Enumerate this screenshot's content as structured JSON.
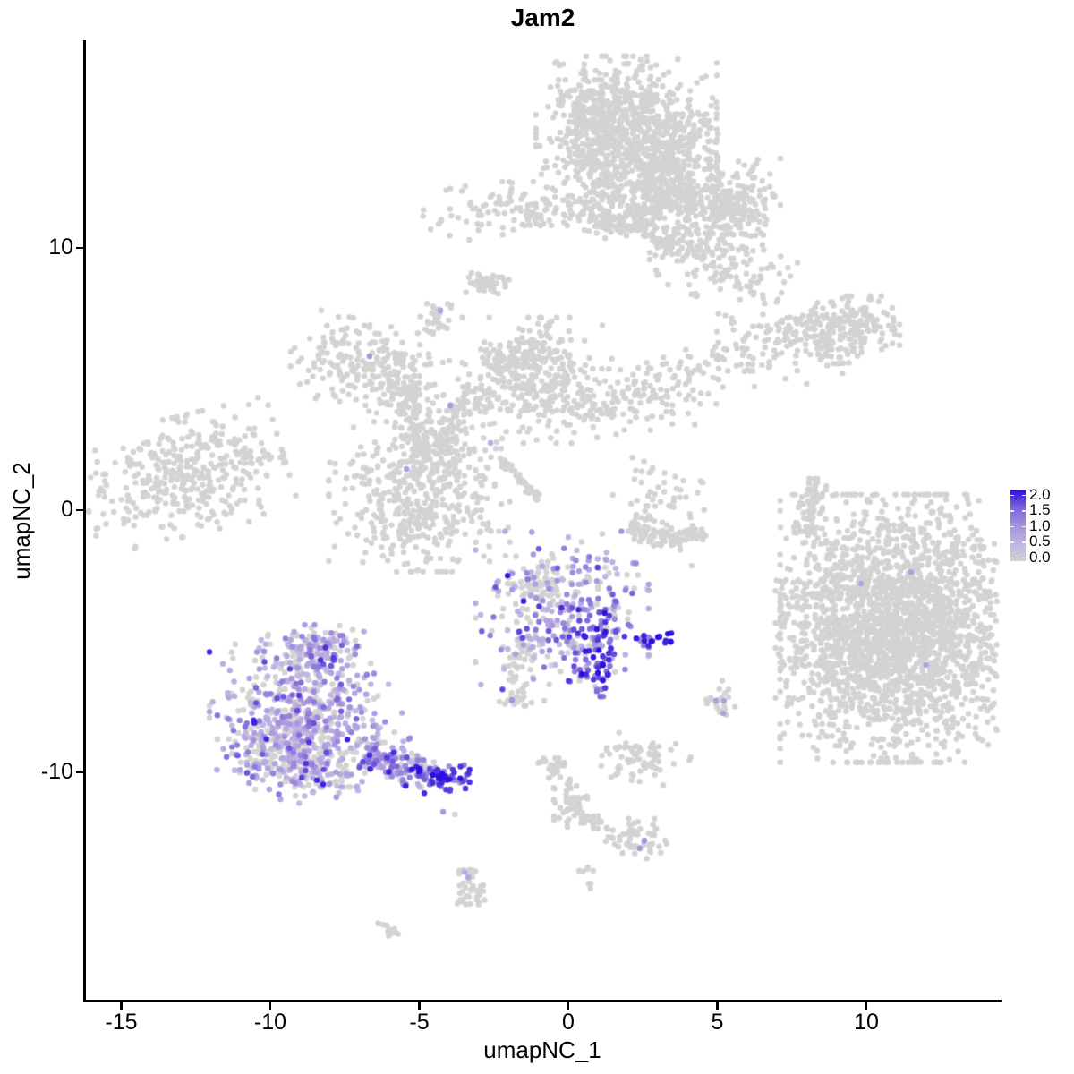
{
  "title": "Jam2",
  "chart_data": {
    "type": "scatter",
    "title": "Jam2",
    "xlabel": "umapNC_1",
    "ylabel": "umapNC_2",
    "x_ticks": [
      {
        "value": -15,
        "label": "-15"
      },
      {
        "value": -10,
        "label": "-10"
      },
      {
        "value": -5,
        "label": "-5"
      },
      {
        "value": 0,
        "label": "0"
      },
      {
        "value": 5,
        "label": "5"
      },
      {
        "value": 10,
        "label": "10"
      }
    ],
    "y_ticks": [
      {
        "value": 10,
        "label": "10"
      },
      {
        "value": 0,
        "label": "0"
      },
      {
        "value": -10,
        "label": "-10"
      }
    ],
    "xlim": [
      -16.2,
      14.5
    ],
    "ylim": [
      -18.6,
      17.9
    ],
    "grid": false,
    "point_radius_px": 3.2,
    "legend": {
      "position": "right",
      "min": 0,
      "max": 2,
      "tick_labels": [
        "2.0",
        "1.5",
        "1.0",
        "0.5",
        "0.0"
      ],
      "gradient_top_to_bottom": [
        "#2a0fe0",
        "#7c63da",
        "#a391de",
        "#beb3e2",
        "#d3d3d3"
      ]
    },
    "color_stops": [
      [
        0,
        "#d3d3d3"
      ],
      [
        0.25,
        "#beb3e2"
      ],
      [
        0.5,
        "#a391de"
      ],
      [
        0.75,
        "#7c63da"
      ],
      [
        1,
        "#2a0fe0"
      ]
    ],
    "expression_mixes": {
      "none": [
        [
          1.0,
          0,
          0
        ]
      ],
      "L": [
        [
          0.4,
          0,
          0
        ],
        [
          0.34,
          0.35,
          0.75
        ],
        [
          0.19,
          0.75,
          1.25
        ],
        [
          0.07,
          1.25,
          1.9
        ]
      ],
      "Ltail": [
        [
          0.25,
          0,
          0
        ],
        [
          0.25,
          0.4,
          0.8
        ],
        [
          0.28,
          0.8,
          1.3
        ],
        [
          0.22,
          1.3,
          2.0
        ]
      ],
      "tip": [
        [
          0.08,
          0,
          0
        ],
        [
          0.25,
          0.8,
          1.3
        ],
        [
          0.67,
          1.4,
          2.05
        ]
      ],
      "K": [
        [
          0.44,
          0,
          0
        ],
        [
          0.3,
          0.35,
          0.8
        ],
        [
          0.18,
          0.8,
          1.3
        ],
        [
          0.08,
          1.3,
          2.0
        ]
      ],
      "Kedge": [
        [
          0.1,
          0,
          0
        ],
        [
          0.3,
          0.9,
          1.4
        ],
        [
          0.6,
          1.4,
          2.05
        ]
      ],
      "blue": [
        [
          1.0,
          1.85,
          2.1
        ]
      ],
      "midp": [
        [
          1.0,
          1.0,
          1.4
        ]
      ]
    },
    "clusters": [
      {
        "x": 1.95,
        "y": 14.3,
        "sx": 1.38,
        "sy": 1.37,
        "n": 750
      },
      {
        "x": 3.3,
        "y": 13.3,
        "sx": 0.78,
        "sy": 0.82,
        "n": 220
      },
      {
        "x": 1.05,
        "y": 15.2,
        "sx": 0.66,
        "sy": 0.55,
        "n": 150
      },
      {
        "x": 1.11,
        "y": 12.2,
        "sx": 0.3,
        "sy": 0.48,
        "n": 45
      },
      {
        "x": 0.99,
        "y": 11.3,
        "sx": 0.3,
        "sy": 0.41,
        "n": 40
      },
      {
        "x": 1.71,
        "y": 10.85,
        "sx": 0.42,
        "sy": 0.27,
        "n": 40
      },
      {
        "x": 2.49,
        "y": 11.1,
        "sx": 0.3,
        "sy": 0.41,
        "n": 45
      },
      {
        "x": 2.73,
        "y": 12.0,
        "sx": 0.3,
        "sy": 0.34,
        "n": 35
      },
      {
        "x": 3.9,
        "y": 11.7,
        "sx": 1.2,
        "sy": 0.48,
        "rot": -10,
        "n": 150
      },
      {
        "x": 5.4,
        "y": 11.7,
        "sx": 0.78,
        "sy": 0.78,
        "n": 200
      },
      {
        "x": 4.95,
        "y": 9.5,
        "sx": 1.14,
        "sy": 0.68,
        "rot": -25,
        "n": 160
      },
      {
        "x": 3.3,
        "y": 10.3,
        "sx": 0.36,
        "sy": 0.31,
        "n": 45
      },
      {
        "x": -1.71,
        "y": 11.4,
        "sx": 1.44,
        "sy": 0.51,
        "n": 120
      },
      {
        "x": -2.7,
        "y": 8.6,
        "sx": 0.36,
        "sy": 0.2,
        "rot": 25,
        "n": 25
      },
      {
        "x": -6.6,
        "y": 5.46,
        "sx": 1.26,
        "sy": 0.75,
        "rot": -15,
        "n": 220
      },
      {
        "x": -5.25,
        "y": 4.44,
        "sx": 0.75,
        "sy": 0.36,
        "rot": -25,
        "n": 60
      },
      {
        "x": -5.25,
        "y": 3.24,
        "sx": 0.36,
        "sy": 0.85,
        "n": 70
      },
      {
        "x": -4.65,
        "y": 2.39,
        "sx": 0.45,
        "sy": 0.51,
        "n": 60
      },
      {
        "x": -3.9,
        "y": 3.24,
        "sx": 0.3,
        "sy": 0.68,
        "rot": -20,
        "n": 50
      },
      {
        "x": -3.15,
        "y": 4.1,
        "sx": 0.36,
        "sy": 0.41,
        "n": 40
      },
      {
        "x": -5.0,
        "y": 0.51,
        "sx": 1.38,
        "sy": 1.3,
        "n": 430
      },
      {
        "x": -1.05,
        "y": 4.95,
        "sx": 1.14,
        "sy": 1.09,
        "n": 280
      },
      {
        "x": -1.11,
        "y": 6.31,
        "sx": 0.36,
        "sy": 0.48,
        "n": 50
      },
      {
        "x": -2.1,
        "y": 5.63,
        "sx": 0.36,
        "sy": 0.34,
        "n": 40
      },
      {
        "x": 1.95,
        "y": 4.16,
        "sx": 1.35,
        "sy": 0.55,
        "rot": 8,
        "n": 110
      },
      {
        "x": 4.65,
        "y": 5.29,
        "sx": 1.35,
        "sy": 0.48,
        "rot": 12,
        "n": 90
      },
      {
        "type": "strip",
        "x1": -2.31,
        "y1": 1.98,
        "x2": -0.99,
        "y2": 0.44,
        "w": 0.09,
        "n": 40
      },
      {
        "x": -12.9,
        "y": 1.3,
        "sx": 1.56,
        "sy": 1.02,
        "rot": 15,
        "n": 360
      },
      {
        "x": -11.0,
        "y": 2.12,
        "sx": 0.66,
        "sy": 0.31,
        "n": 30
      },
      {
        "x": 7.96,
        "y": 6.89,
        "sx": 1.35,
        "sy": 0.44,
        "rot": 5,
        "n": 140
      },
      {
        "x": 9.4,
        "y": 6.89,
        "sx": 0.78,
        "sy": 0.58,
        "n": 130
      },
      {
        "x": 8.8,
        "y": 5.94,
        "sx": 0.36,
        "sy": 0.24,
        "rot": -45,
        "n": 20
      },
      {
        "type": "strip",
        "x1": 8.32,
        "y1": 1.3,
        "x2": 7.96,
        "y2": -0.96,
        "w": 0.18,
        "n": 65
      },
      {
        "type": "strip",
        "x1": 2.1,
        "y1": -0.51,
        "x2": 3.21,
        "y2": -1.23,
        "w": 0.2,
        "n": 55
      },
      {
        "type": "strip",
        "x1": 3.21,
        "y1": -1.23,
        "x2": 4.56,
        "y2": -0.78,
        "w": 0.2,
        "n": 55
      },
      {
        "x": 3.21,
        "y": 0.34,
        "sx": 0.78,
        "sy": 0.55,
        "n": 40
      },
      {
        "x": 2.55,
        "y": 1.43,
        "sx": 0.42,
        "sy": 0.34,
        "n": 10
      },
      {
        "x": 11.2,
        "y": -4.51,
        "sx": 1.86,
        "sy": 2.32,
        "n": 2250
      },
      {
        "x": 8.8,
        "y": -4.44,
        "sx": 0.84,
        "sy": 1.98,
        "n": 220
      },
      {
        "x": -0.21,
        "y": -3.82,
        "sx": 1.32,
        "sy": 1.37,
        "n": 300,
        "mix": "K"
      },
      {
        "x": 0.93,
        "y": -4.95,
        "sx": 0.42,
        "sy": 0.82,
        "rot": -25,
        "n": 70,
        "mix": "Kedge"
      },
      {
        "x": 1.14,
        "y": -5.9,
        "sx": 0.21,
        "sy": 0.55,
        "n": 25,
        "mix": "Kedge"
      },
      {
        "x": -1.05,
        "y": -2.73,
        "sx": 0.45,
        "sy": 0.41,
        "n": 40
      },
      {
        "x": 2.94,
        "y": -4.98,
        "sx": 0.3,
        "sy": 0.17,
        "n": 14,
        "mix": "blue"
      },
      {
        "x": 2.52,
        "y": -4.95,
        "sx": 0.15,
        "sy": 0.14,
        "n": 6,
        "mix": "midp"
      },
      {
        "type": "strip",
        "x1": -1.5,
        "y1": -4.78,
        "x2": -1.8,
        "y2": -7.44,
        "w": 0.25,
        "n": 70
      },
      {
        "x": -8.5,
        "y": -5.87,
        "sx": 0.9,
        "sy": 0.68,
        "n": 140,
        "mix": "L"
      },
      {
        "x": -9.4,
        "y": -7.51,
        "sx": 1.2,
        "sy": 1.09,
        "n": 260,
        "mix": "L"
      },
      {
        "x": -8.02,
        "y": -8.6,
        "sx": 1.26,
        "sy": 0.89,
        "n": 240,
        "mix": "L"
      },
      {
        "x": -10.06,
        "y": -9.15,
        "sx": 0.78,
        "sy": 0.68,
        "n": 120,
        "mix": "L"
      },
      {
        "x": -8.5,
        "y": -9.97,
        "sx": 0.9,
        "sy": 0.55,
        "n": 110,
        "mix": "L"
      },
      {
        "x": -8.2,
        "y": -5.05,
        "sx": 0.48,
        "sy": 0.31,
        "n": 50,
        "mix": "L"
      },
      {
        "type": "strip",
        "x1": -6.82,
        "y1": -9.28,
        "x2": -4.71,
        "y2": -10.1,
        "w": 0.3,
        "n": 130,
        "mix": "Ltail"
      },
      {
        "x": -4.17,
        "y": -10.2,
        "sx": 0.39,
        "sy": 0.27,
        "n": 60,
        "mix": "tip"
      },
      {
        "x": -4.14,
        "y": -10.14,
        "sx": 0.12,
        "sy": 0.1,
        "n": 6,
        "mix": "blue"
      },
      {
        "type": "strip",
        "x1": -0.69,
        "y1": -9.39,
        "x2": -0.3,
        "y2": -10.3,
        "w": 0.25,
        "n": 30
      },
      {
        "type": "strip",
        "x1": -0.3,
        "y1": -10.3,
        "x2": 0.24,
        "y2": -11.4,
        "w": 0.3,
        "n": 35
      },
      {
        "x": 0.3,
        "y": -11.6,
        "sx": 0.36,
        "sy": 0.27,
        "n": 25
      },
      {
        "type": "strip",
        "x1": 0.6,
        "y1": -11.8,
        "x2": 1.11,
        "y2": -11.9,
        "w": 0.15,
        "n": 12
      },
      {
        "x": 2.49,
        "y": -9.45,
        "sx": 0.72,
        "sy": 0.41,
        "rot": -10,
        "n": 70
      },
      {
        "x": 2.31,
        "y": -12.6,
        "sx": 0.48,
        "sy": 0.38,
        "n": 45
      },
      {
        "x": 1.86,
        "y": -12.3,
        "sx": 0.3,
        "sy": 0.2,
        "n": 12
      },
      {
        "type": "strip",
        "x1": -3.39,
        "y1": -13.7,
        "x2": -3.27,
        "y2": -15.2,
        "w": 0.22,
        "n": 45
      },
      {
        "x": -5.89,
        "y": -16.1,
        "sx": 0.27,
        "sy": 0.14,
        "rot": -45,
        "n": 12
      },
      {
        "x": 0.69,
        "y": -13.9,
        "sx": 0.15,
        "sy": 0.24,
        "n": 8
      },
      {
        "x": -4.44,
        "y": 7.44,
        "sx": 0.3,
        "sy": 0.34,
        "n": 30
      },
      {
        "x": -2.76,
        "y": 8.6,
        "sx": 0.33,
        "sy": 0.2,
        "rot": -30,
        "n": 20
      },
      {
        "x": 5.13,
        "y": -7.34,
        "sx": 0.24,
        "sy": 0.38,
        "n": 20
      }
    ],
    "singles": [
      [
        -6.67,
        5.87,
        0.9
      ],
      [
        -3.96,
        3.99,
        0.9
      ],
      [
        -5.43,
        1.57,
        0.8
      ],
      [
        -2.61,
        2.56,
        0.6
      ],
      [
        -4.29,
        7.61,
        0.8
      ],
      [
        11.5,
        -2.36,
        0.8
      ],
      [
        9.82,
        -2.8,
        0.7
      ],
      [
        12.0,
        -5.9,
        0.8
      ],
      [
        -1.29,
        -5.29,
        0.5
      ],
      [
        -1.89,
        -7.24,
        1.0
      ],
      [
        -0.81,
        -7.27,
        0
      ],
      [
        4.95,
        -7.27,
        0.8
      ],
      [
        5.22,
        -7.27,
        0.8
      ],
      [
        5.2,
        -7.75,
        0.8
      ],
      [
        4.65,
        -7.37,
        0
      ],
      [
        2.55,
        -12.6,
        1.0
      ],
      [
        2.4,
        -12.9,
        0.9
      ],
      [
        -3.48,
        -13.8,
        0.6
      ],
      [
        -3.36,
        -14.0,
        0.7
      ],
      [
        -4.2,
        -11.5,
        0.9
      ],
      [
        -3.8,
        -11.6,
        0
      ],
      [
        4.14,
        -2.12,
        0
      ],
      [
        8.0,
        4.81,
        0
      ]
    ]
  }
}
